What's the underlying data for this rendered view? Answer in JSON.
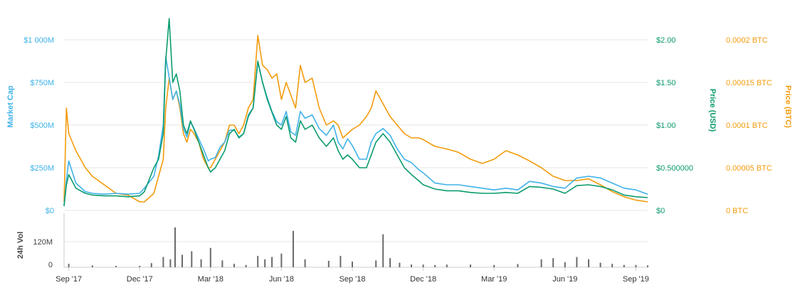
{
  "chart_data": {
    "type": "line",
    "left_axis": {
      "label": "Market Cap",
      "ticks": [
        "$0",
        "$250M",
        "$500M",
        "$750M",
        "$1 000M"
      ],
      "tick_values": [
        0,
        250,
        500,
        750,
        1000
      ],
      "range": [
        0,
        1000
      ],
      "unit": "M USD"
    },
    "usd_axis": {
      "label": "Price (USD)",
      "ticks": [
        "$0",
        "$0.500000",
        "$1.00",
        "$1.50",
        "$2.00"
      ],
      "tick_values": [
        0,
        0.5,
        1.0,
        1.5,
        2.0
      ],
      "range": [
        0,
        2.0
      ]
    },
    "btc_axis": {
      "label": "Price (BTC)",
      "ticks": [
        "0 BTC",
        "0.00005 BTC",
        "0.0001 BTC",
        "0.00015 BTC",
        "0.0002 BTC"
      ],
      "tick_values": [
        0,
        5e-05,
        0.0001,
        0.00015,
        0.0002
      ],
      "range": [
        0,
        0.0002
      ]
    },
    "volume_axis": {
      "label": "24h Vol",
      "ticks": [
        "0",
        "120M"
      ],
      "tick_values": [
        0,
        120
      ],
      "unit": "M"
    },
    "x_labels": [
      "Sep '17",
      "Dec '17",
      "Mar '18",
      "Jun '18",
      "Sep '18",
      "Dec '18",
      "Mar '19",
      "Jun '19",
      "Sep '19"
    ],
    "x_label_months": [
      0,
      3,
      6,
      9,
      12,
      15,
      18,
      21,
      24
    ],
    "x_range_months": [
      -0.2,
      24.5
    ],
    "grid": true,
    "colors": {
      "market_cap": "#3fb2e8",
      "price_usd": "#0b9b6f",
      "price_btc": "#f29b0c",
      "volume": "#6b6b6b"
    },
    "series": [
      {
        "name": "Market Cap",
        "axis": "left",
        "x": [
          -0.2,
          -0.1,
          0,
          0.3,
          0.7,
          1,
          1.5,
          2,
          2.5,
          3,
          3.2,
          3.6,
          3.8,
          4.0,
          4.1,
          4.25,
          4.4,
          4.55,
          4.7,
          4.85,
          5,
          5.15,
          5.3,
          5.5,
          5.7,
          5.9,
          6.0,
          6.2,
          6.4,
          6.6,
          6.8,
          7.0,
          7.2,
          7.4,
          7.6,
          7.8,
          8.0,
          8.2,
          8.4,
          8.6,
          8.8,
          9.0,
          9.2,
          9.4,
          9.6,
          9.8,
          10.0,
          10.3,
          10.6,
          10.9,
          11.2,
          11.4,
          11.6,
          11.8,
          12.0,
          12.3,
          12.6,
          12.8,
          13.0,
          13.3,
          13.6,
          13.9,
          14.2,
          14.5,
          14.8,
          15.0,
          15.5,
          16,
          16.5,
          17,
          17.5,
          18,
          18.5,
          19,
          19.5,
          20,
          20.5,
          21,
          21.5,
          22,
          22.5,
          23,
          23.5,
          24,
          24.5
        ],
        "y": [
          25,
          180,
          290,
          160,
          110,
          100,
          95,
          100,
          95,
          100,
          130,
          200,
          320,
          500,
          900,
          780,
          650,
          700,
          620,
          480,
          430,
          520,
          480,
          420,
          360,
          290,
          300,
          310,
          370,
          400,
          470,
          470,
          430,
          450,
          560,
          600,
          870,
          750,
          660,
          580,
          520,
          500,
          580,
          460,
          440,
          580,
          540,
          560,
          480,
          440,
          500,
          400,
          360,
          420,
          380,
          300,
          300,
          400,
          450,
          480,
          440,
          360,
          300,
          280,
          240,
          220,
          160,
          150,
          150,
          140,
          130,
          120,
          130,
          120,
          170,
          160,
          140,
          130,
          190,
          200,
          190,
          160,
          130,
          120,
          95
        ]
      },
      {
        "name": "Price (USD)",
        "axis": "usd",
        "x": [
          -0.2,
          -0.1,
          0,
          0.3,
          0.7,
          1,
          1.5,
          2,
          2.5,
          3,
          3.2,
          3.6,
          3.8,
          4.0,
          4.1,
          4.25,
          4.4,
          4.55,
          4.7,
          4.85,
          5,
          5.15,
          5.3,
          5.5,
          5.7,
          5.9,
          6.0,
          6.2,
          6.4,
          6.6,
          6.8,
          7.0,
          7.2,
          7.4,
          7.6,
          7.8,
          8.0,
          8.2,
          8.4,
          8.6,
          8.8,
          9.0,
          9.2,
          9.4,
          9.6,
          9.8,
          10.0,
          10.3,
          10.6,
          10.9,
          11.2,
          11.4,
          11.6,
          11.8,
          12.0,
          12.3,
          12.6,
          12.8,
          13.0,
          13.3,
          13.6,
          13.9,
          14.2,
          14.5,
          14.8,
          15.0,
          15.5,
          16,
          16.5,
          17,
          17.5,
          18,
          18.5,
          19,
          19.5,
          20,
          20.5,
          21,
          21.5,
          22,
          22.5,
          23,
          23.5,
          24,
          24.5
        ],
        "y": [
          0.05,
          0.3,
          0.42,
          0.26,
          0.2,
          0.18,
          0.17,
          0.17,
          0.16,
          0.17,
          0.22,
          0.5,
          0.6,
          0.9,
          1.75,
          2.25,
          1.5,
          1.6,
          1.4,
          1.0,
          0.9,
          1.05,
          0.95,
          0.8,
          0.65,
          0.5,
          0.45,
          0.5,
          0.6,
          0.7,
          0.9,
          0.95,
          0.85,
          0.9,
          1.1,
          1.2,
          1.75,
          1.5,
          1.3,
          1.15,
          1.0,
          0.95,
          1.1,
          0.85,
          0.8,
          1.05,
          0.95,
          1.0,
          0.85,
          0.75,
          0.85,
          0.7,
          0.6,
          0.65,
          0.6,
          0.5,
          0.5,
          0.65,
          0.8,
          0.9,
          0.8,
          0.65,
          0.5,
          0.42,
          0.35,
          0.3,
          0.25,
          0.23,
          0.23,
          0.21,
          0.2,
          0.2,
          0.21,
          0.2,
          0.28,
          0.27,
          0.25,
          0.2,
          0.29,
          0.3,
          0.28,
          0.24,
          0.18,
          0.16,
          0.15
        ]
      },
      {
        "name": "Price (BTC)",
        "axis": "btc",
        "x": [
          -0.2,
          -0.1,
          0,
          0.3,
          0.7,
          1,
          1.5,
          2,
          2.5,
          3,
          3.2,
          3.6,
          3.8,
          4.0,
          4.1,
          4.25,
          4.4,
          4.55,
          4.7,
          4.85,
          5,
          5.15,
          5.3,
          5.5,
          5.7,
          5.9,
          6.0,
          6.2,
          6.4,
          6.6,
          6.8,
          7.0,
          7.2,
          7.4,
          7.6,
          7.8,
          8.0,
          8.2,
          8.4,
          8.6,
          8.8,
          9.0,
          9.2,
          9.4,
          9.6,
          9.8,
          10.0,
          10.3,
          10.6,
          10.9,
          11.2,
          11.4,
          11.6,
          11.8,
          12.0,
          12.3,
          12.6,
          12.8,
          13.0,
          13.3,
          13.6,
          13.9,
          14.2,
          14.5,
          14.8,
          15.0,
          15.5,
          16,
          16.5,
          17,
          17.5,
          18,
          18.5,
          19,
          19.5,
          20,
          20.5,
          21,
          21.5,
          22,
          22.5,
          23,
          23.5,
          24,
          24.5
        ],
        "y": [
          1e-05,
          0.00012,
          9e-05,
          7e-05,
          5e-05,
          4e-05,
          3e-05,
          2e-05,
          1.8e-05,
          1e-05,
          1e-05,
          2e-05,
          4e-05,
          6e-05,
          0.00012,
          0.000155,
          0.00013,
          0.00014,
          0.00012,
          9e-05,
          8e-05,
          9.5e-05,
          9e-05,
          8e-05,
          6e-05,
          5e-05,
          5e-05,
          6e-05,
          7e-05,
          8e-05,
          0.0001,
          0.0001,
          9e-05,
          0.0001,
          0.00012,
          0.00013,
          0.000205,
          0.00017,
          0.000165,
          0.000155,
          0.00016,
          0.00013,
          0.00015,
          0.000135,
          0.00012,
          0.00017,
          0.00015,
          0.000155,
          0.00012,
          0.0001,
          0.000105,
          0.0001,
          8.5e-05,
          9e-05,
          9.5e-05,
          0.0001,
          0.00011,
          0.00012,
          0.00014,
          0.000125,
          0.00011,
          0.0001,
          9e-05,
          8.5e-05,
          8.5e-05,
          8.3e-05,
          7.5e-05,
          7.2e-05,
          6.8e-05,
          6e-05,
          5.5e-05,
          6e-05,
          7e-05,
          6.5e-05,
          5.8e-05,
          5e-05,
          4e-05,
          3.5e-05,
          3.5e-05,
          3.7e-05,
          3e-05,
          2.2e-05,
          1.6e-05,
          1.2e-05,
          1e-05
        ]
      },
      {
        "name": "24h Vol",
        "axis": "volume",
        "type": "bar",
        "x": [
          0,
          1,
          2,
          3,
          3.5,
          4.0,
          4.3,
          4.5,
          4.8,
          5.2,
          5.6,
          6.0,
          6.5,
          7,
          7.5,
          8,
          8.3,
          8.6,
          9,
          9.5,
          10,
          11,
          11.5,
          12,
          13,
          13.3,
          13.6,
          14,
          14.5,
          15,
          15.5,
          16,
          17,
          18,
          19,
          20,
          20.5,
          21,
          21.5,
          22,
          22.5,
          23,
          23.5,
          24,
          24.5
        ],
        "y": [
          15,
          8,
          6,
          6,
          18,
          45,
          35,
          175,
          55,
          70,
          35,
          85,
          30,
          15,
          10,
          50,
          35,
          45,
          60,
          160,
          35,
          28,
          50,
          25,
          30,
          145,
          40,
          20,
          12,
          12,
          10,
          12,
          12,
          10,
          14,
          35,
          40,
          22,
          45,
          35,
          20,
          15,
          10,
          10,
          8
        ]
      }
    ]
  }
}
